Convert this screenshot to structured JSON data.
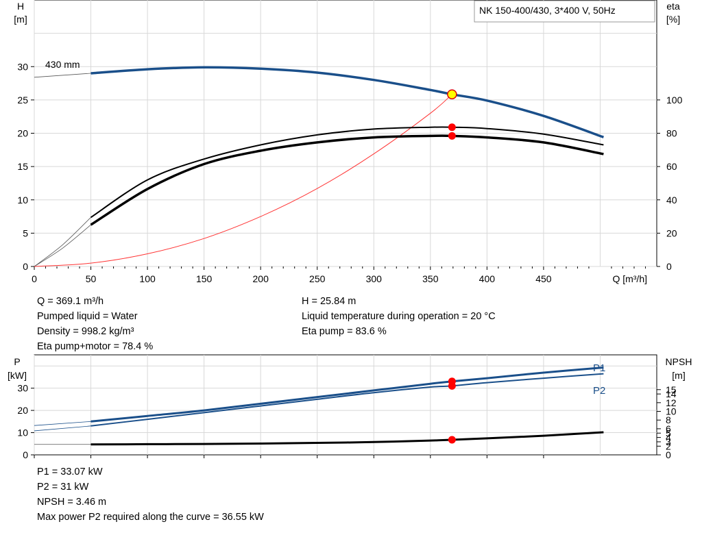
{
  "chart_data": [
    {
      "type": "line",
      "title": "NK 150-400/430, 3*400 V, 50Hz",
      "xlabel": "Q [m³/h]",
      "ylabel_left": [
        "H",
        "[m]"
      ],
      "ylabel_right": [
        "eta",
        "[%]"
      ],
      "xlim": [
        0,
        550
      ],
      "xticks": [
        "0",
        "50",
        "100",
        "150",
        "200",
        "250",
        "300",
        "350",
        "400",
        "450"
      ],
      "ylim_left": [
        0,
        40
      ],
      "yticks_left": [
        "0",
        "5",
        "10",
        "15",
        "20",
        "25",
        "30"
      ],
      "ylim_right": [
        0,
        160
      ],
      "yticks_right": [
        "0",
        "20",
        "40",
        "60",
        "80",
        "100"
      ],
      "grid": true,
      "impeller_label": "430 mm",
      "series": [
        {
          "key": "H",
          "axis": "left",
          "color": "#1a4f8a",
          "x": [
            50,
            100,
            150,
            200,
            250,
            300,
            350,
            369.1,
            400,
            450,
            503
          ],
          "y": [
            29.0,
            29.6,
            29.9,
            29.7,
            29.1,
            28.0,
            26.5,
            25.84,
            24.9,
            22.6,
            19.4
          ]
        },
        {
          "key": "eta_pump",
          "axis": "right",
          "color": "#000000",
          "x": [
            50,
            100,
            150,
            200,
            250,
            300,
            350,
            369.1,
            400,
            450,
            503
          ],
          "y": [
            29.5,
            52,
            64.5,
            73,
            79,
            82.5,
            83.6,
            83.6,
            82.8,
            79.5,
            73
          ]
        },
        {
          "key": "eta_pump_motor",
          "axis": "right",
          "color": "#000000",
          "x": [
            50,
            100,
            150,
            200,
            250,
            300,
            350,
            369.1,
            400,
            450,
            503
          ],
          "y": [
            25,
            46.5,
            61.5,
            69.5,
            74.5,
            77.5,
            78.4,
            78.4,
            77.5,
            74.5,
            67.5
          ]
        },
        {
          "key": "system",
          "axis": "left",
          "color": "#ff3333",
          "x": [
            0,
            50,
            100,
            150,
            200,
            250,
            300,
            350,
            369.1
          ],
          "y": [
            0,
            0.5,
            1.9,
            4.2,
            7.5,
            11.7,
            16.9,
            23.0,
            25.84
          ]
        }
      ],
      "operating_point": {
        "x": 369.1,
        "H": 25.84,
        "eta_pump": 83.6,
        "eta_pump_motor": 78.4
      }
    },
    {
      "type": "line",
      "ylabel_left": [
        "P",
        "[kW]"
      ],
      "ylabel_right": [
        "NPSH",
        "[m]"
      ],
      "xlim": [
        0,
        550
      ],
      "ylim_left": [
        0,
        45
      ],
      "yticks_left": [
        "0",
        "10",
        "20",
        "30"
      ],
      "ylim_right": [
        0,
        23
      ],
      "yticks_right": [
        "0",
        "2",
        "3",
        "4",
        "5",
        "6",
        "8",
        "10",
        "12",
        "14",
        "15"
      ],
      "yticks_right_values": [
        0,
        2,
        3,
        4,
        5,
        6,
        8,
        10,
        12,
        14,
        15
      ],
      "series": [
        {
          "name": "P1",
          "axis": "left",
          "color": "#1a4f8a",
          "x": [
            50,
            100,
            150,
            200,
            250,
            300,
            350,
            369.1,
            400,
            450,
            503
          ],
          "y": [
            15,
            17.5,
            20,
            23,
            26,
            29,
            32,
            33.07,
            34.5,
            37,
            39.3
          ]
        },
        {
          "name": "P2",
          "axis": "left",
          "color": "#1a4f8a",
          "x": [
            50,
            100,
            150,
            200,
            250,
            300,
            350,
            369.1,
            400,
            450,
            503
          ],
          "y": [
            13,
            16,
            19,
            22,
            25,
            28,
            30.5,
            31,
            32.5,
            34.5,
            36.5
          ]
        },
        {
          "key": "NPSH",
          "axis": "right",
          "color": "#000000",
          "x": [
            50,
            100,
            150,
            200,
            250,
            300,
            350,
            369.1,
            400,
            450,
            503
          ],
          "y": [
            2.4,
            2.45,
            2.5,
            2.6,
            2.75,
            2.95,
            3.3,
            3.46,
            3.8,
            4.4,
            5.2
          ]
        }
      ],
      "operating_point": {
        "x": 369.1,
        "P1": 33.07,
        "P2": 31,
        "NPSH": 3.46
      }
    }
  ],
  "readout_top": {
    "left": [
      "Q = 369.1 m³/h",
      "Pumped liquid = Water",
      "Density = 998.2 kg/m³",
      "Eta pump+motor = 78.4 %"
    ],
    "right": [
      "H = 25.84 m",
      "Liquid temperature during operation = 20 °C",
      "Eta pump = 83.6 %"
    ]
  },
  "readout_bottom": [
    "P1 = 33.07 kW",
    "P2 = 31 kW",
    "NPSH = 3.46 m",
    "Max power P2 required along the curve = 36.55 kW"
  ],
  "colors": {
    "curve_blue": "#1a4f8a",
    "point_red": "#ff0000",
    "point_yellow": "#ffff00",
    "grid": "#d8d8d8"
  }
}
